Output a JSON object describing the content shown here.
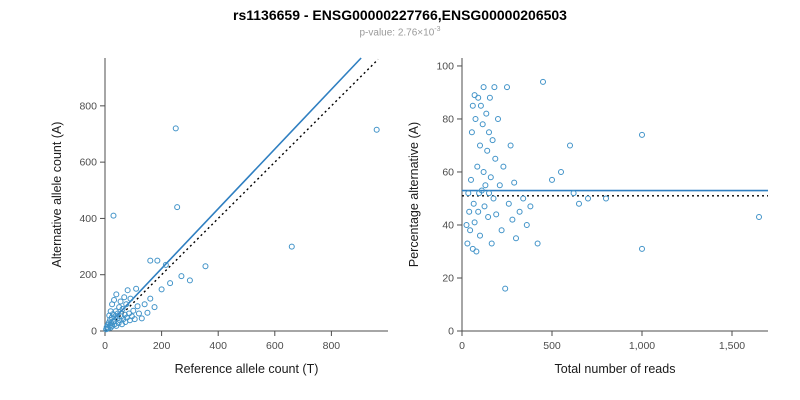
{
  "header": {
    "title": "rs1136659 - ENSG00000227766,ENSG00000206503",
    "pvalue_prefix": "p-value: 2.76×10",
    "pvalue_exponent": "-3"
  },
  "colors": {
    "point": "#4193c8",
    "line": "#2f7fc1",
    "dashed": "#000000",
    "axis": "#4d4d4d",
    "tick_label": "#4d4d4d",
    "axis_title": "#1a1a1a"
  },
  "chart_data": [
    {
      "type": "scatter",
      "xlabel": "Reference allele count (T)",
      "ylabel": "Alternative allele count (A)",
      "xlim": [
        0,
        1000
      ],
      "ylim": [
        0,
        970
      ],
      "grid": false,
      "xticks": {
        "values": [
          0,
          200,
          400,
          600,
          800
        ],
        "labels": [
          "0",
          "200",
          "400",
          "600",
          "800"
        ]
      },
      "yticks": {
        "values": [
          0,
          200,
          400,
          600,
          800
        ],
        "labels": [
          "0",
          "200",
          "400",
          "600",
          "800"
        ]
      },
      "lines": [
        {
          "style": "solid",
          "color": "#2f7fc1",
          "x1": 0,
          "y1": 10,
          "x2": 905,
          "y2": 970
        },
        {
          "style": "dotted",
          "color": "#000000",
          "x1": 0,
          "y1": 0,
          "x2": 965,
          "y2": 965
        }
      ],
      "points": [
        [
          4,
          6
        ],
        [
          6,
          14
        ],
        [
          8,
          8
        ],
        [
          10,
          22
        ],
        [
          12,
          10
        ],
        [
          14,
          30
        ],
        [
          15,
          55
        ],
        [
          16,
          18
        ],
        [
          18,
          40
        ],
        [
          20,
          12
        ],
        [
          20,
          70
        ],
        [
          22,
          28
        ],
        [
          24,
          48
        ],
        [
          25,
          95
        ],
        [
          26,
          18
        ],
        [
          28,
          60
        ],
        [
          30,
          35
        ],
        [
          30,
          410
        ],
        [
          32,
          110
        ],
        [
          34,
          24
        ],
        [
          36,
          52
        ],
        [
          38,
          70
        ],
        [
          40,
          18
        ],
        [
          40,
          130
        ],
        [
          42,
          44
        ],
        [
          45,
          62
        ],
        [
          48,
          28
        ],
        [
          50,
          85
        ],
        [
          52,
          38
        ],
        [
          55,
          105
        ],
        [
          58,
          52
        ],
        [
          60,
          24
        ],
        [
          62,
          78
        ],
        [
          65,
          42
        ],
        [
          68,
          120
        ],
        [
          70,
          58
        ],
        [
          72,
          32
        ],
        [
          75,
          95
        ],
        [
          78,
          48
        ],
        [
          80,
          145
        ],
        [
          85,
          62
        ],
        [
          88,
          38
        ],
        [
          90,
          115
        ],
        [
          95,
          52
        ],
        [
          100,
          72
        ],
        [
          105,
          42
        ],
        [
          110,
          150
        ],
        [
          115,
          88
        ],
        [
          120,
          62
        ],
        [
          130,
          45
        ],
        [
          140,
          95
        ],
        [
          150,
          65
        ],
        [
          160,
          115
        ],
        [
          160,
          250
        ],
        [
          175,
          85
        ],
        [
          185,
          250
        ],
        [
          200,
          148
        ],
        [
          215,
          235
        ],
        [
          230,
          170
        ],
        [
          250,
          720
        ],
        [
          255,
          440
        ],
        [
          270,
          195
        ],
        [
          300,
          180
        ],
        [
          355,
          230
        ],
        [
          660,
          300
        ],
        [
          960,
          715
        ]
      ]
    },
    {
      "type": "scatter",
      "xlabel": "Total number of reads",
      "ylabel": "Percentage alternative (A)",
      "xlim": [
        0,
        1700
      ],
      "ylim": [
        0,
        103
      ],
      "grid": false,
      "xticks": {
        "values": [
          0,
          500,
          1000,
          1500
        ],
        "labels": [
          "0",
          "500",
          "1,000",
          "1,500"
        ]
      },
      "yticks": {
        "values": [
          0,
          20,
          40,
          60,
          80,
          100
        ],
        "labels": [
          "0",
          "20",
          "40",
          "60",
          "80",
          "100"
        ]
      },
      "lines": [
        {
          "style": "solid",
          "color": "#2f7fc1",
          "x1": 0,
          "y1": 53,
          "x2": 1700,
          "y2": 53
        },
        {
          "style": "dotted",
          "color": "#000000",
          "x1": 0,
          "y1": 51,
          "x2": 1700,
          "y2": 51
        }
      ],
      "points": [
        [
          25,
          40
        ],
        [
          30,
          33
        ],
        [
          35,
          52
        ],
        [
          40,
          45
        ],
        [
          45,
          38
        ],
        [
          50,
          57
        ],
        [
          55,
          75
        ],
        [
          60,
          85
        ],
        [
          60,
          31
        ],
        [
          65,
          48
        ],
        [
          70,
          89
        ],
        [
          70,
          41
        ],
        [
          75,
          80
        ],
        [
          80,
          30
        ],
        [
          85,
          62
        ],
        [
          90,
          88
        ],
        [
          90,
          45
        ],
        [
          95,
          52
        ],
        [
          100,
          70
        ],
        [
          100,
          36
        ],
        [
          105,
          85
        ],
        [
          110,
          53
        ],
        [
          115,
          78
        ],
        [
          120,
          60
        ],
        [
          120,
          92
        ],
        [
          125,
          47
        ],
        [
          130,
          55
        ],
        [
          135,
          82
        ],
        [
          140,
          68
        ],
        [
          145,
          43
        ],
        [
          150,
          75
        ],
        [
          150,
          52
        ],
        [
          155,
          88
        ],
        [
          160,
          58
        ],
        [
          165,
          33
        ],
        [
          170,
          72
        ],
        [
          175,
          50
        ],
        [
          180,
          92
        ],
        [
          185,
          65
        ],
        [
          190,
          44
        ],
        [
          200,
          80
        ],
        [
          210,
          55
        ],
        [
          220,
          38
        ],
        [
          230,
          62
        ],
        [
          240,
          16
        ],
        [
          250,
          92
        ],
        [
          260,
          48
        ],
        [
          270,
          70
        ],
        [
          280,
          42
        ],
        [
          290,
          56
        ],
        [
          300,
          35
        ],
        [
          320,
          45
        ],
        [
          340,
          50
        ],
        [
          360,
          40
        ],
        [
          380,
          47
        ],
        [
          420,
          33
        ],
        [
          450,
          94
        ],
        [
          500,
          57
        ],
        [
          550,
          60
        ],
        [
          600,
          70
        ],
        [
          620,
          52
        ],
        [
          650,
          48
        ],
        [
          700,
          50
        ],
        [
          800,
          50
        ],
        [
          1000,
          74
        ],
        [
          1000,
          31
        ],
        [
          1650,
          43
        ]
      ]
    }
  ]
}
